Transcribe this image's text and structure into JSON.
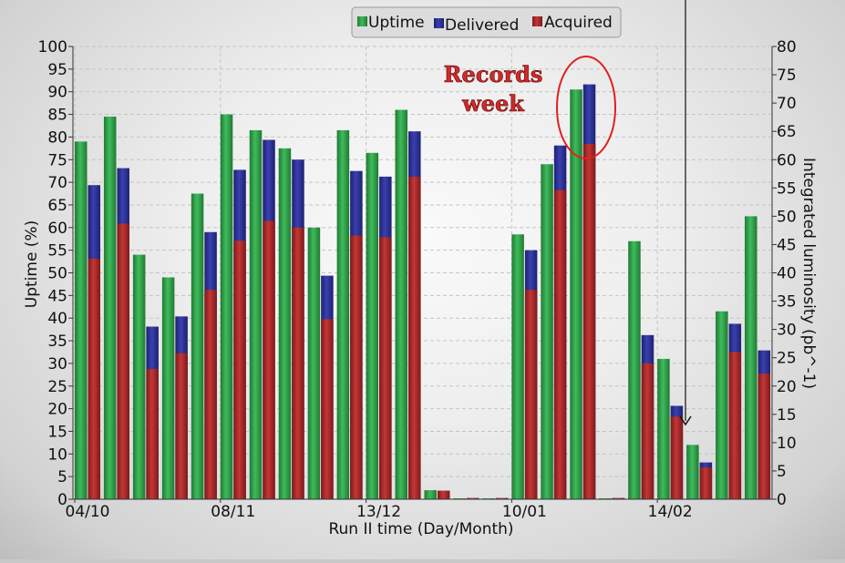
{
  "chart_data": {
    "type": "bar",
    "xlabel": "Run II time (Day/Month)",
    "ylabel": "Uptime (%)",
    "y2label": "Integrated luminosity (pb^-1)",
    "ylim": [
      0,
      100
    ],
    "y2lim": [
      0,
      80
    ],
    "yticks": [
      "0",
      "5",
      "10",
      "15",
      "20",
      "25",
      "30",
      "35",
      "40",
      "45",
      "50",
      "55",
      "60",
      "65",
      "70",
      "75",
      "80",
      "85",
      "90",
      "95",
      "100"
    ],
    "y2ticks": [
      "0",
      "5",
      "10",
      "15",
      "20",
      "25",
      "30",
      "35",
      "40",
      "45",
      "50",
      "55",
      "60",
      "65",
      "70",
      "75",
      "80"
    ],
    "xtick_labels": [
      {
        "label": "04/10",
        "index": 0
      },
      {
        "label": "08/11",
        "index": 5
      },
      {
        "label": "13/12",
        "index": 10
      },
      {
        "label": "10/01",
        "index": 15
      },
      {
        "label": "14/02",
        "index": 20
      }
    ],
    "grid": true,
    "legend_position": "top",
    "series": [
      {
        "name": "Uptime",
        "axis": "left",
        "color": "#2e9b45",
        "values": [
          79,
          84.5,
          54,
          49,
          67.5,
          85,
          81.5,
          77.5,
          60,
          81.5,
          76.5,
          86,
          2,
          0.2,
          0.2,
          58.5,
          74,
          90.5,
          0.2,
          57,
          31,
          12,
          41.5,
          62.5
        ]
      },
      {
        "name": "Delivered",
        "axis": "right",
        "color": "#2b2f8f",
        "values": [
          55.5,
          58.5,
          30.5,
          32.3,
          47.2,
          58.2,
          63.5,
          60,
          39.5,
          58,
          57,
          65,
          1.5,
          0.2,
          0.2,
          44,
          62.5,
          73.3,
          0.2,
          29,
          16.5,
          6.5,
          31,
          26.3
        ]
      },
      {
        "name": "Acquired",
        "axis": "right",
        "color": "#a82a2a",
        "values": [
          42.5,
          48.7,
          23,
          25.8,
          37,
          45.7,
          49.2,
          48,
          31.8,
          46.6,
          46.3,
          57,
          1.5,
          0.2,
          0.2,
          37,
          54.6,
          62.8,
          0.2,
          24,
          14.6,
          5.6,
          26,
          22.2
        ]
      }
    ],
    "annotations": [
      {
        "text": "Records",
        "color": "#cf2a2a"
      },
      {
        "text": "week",
        "color": "#cf2a2a"
      }
    ]
  }
}
